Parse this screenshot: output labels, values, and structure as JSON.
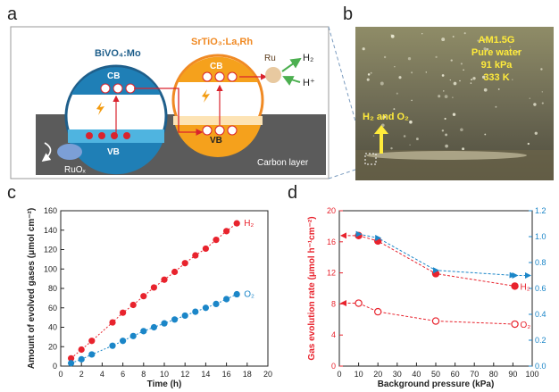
{
  "panel_letters": {
    "a": "a",
    "b": "b",
    "c": "c",
    "d": "d"
  },
  "schematic": {
    "bivo4_label": "BiVO₄:Mo",
    "srtio3_label": "SrTiO₃:La,Rh",
    "cb": "CB",
    "vb": "VB",
    "ru": "Ru",
    "h2": "H₂",
    "hplus": "H⁺",
    "h2o": "H₂O",
    "o2": "O₂",
    "ruox": "RuOₓ",
    "carbon_layer": "Carbon layer",
    "colors": {
      "blue": "#1f7fb6",
      "orange": "#f5a11c",
      "gray": "#5f5f5f",
      "red": "#d9232d"
    }
  },
  "photo": {
    "conditions": [
      "AM1.5G",
      "Pure water",
      "91 kPa",
      "333 K"
    ],
    "gas_label": "H₂ and O₂"
  },
  "chart_data": [
    {
      "type": "scatter",
      "panel": "c",
      "xlabel": "Time (h)",
      "ylabel": "Amount of evolved gases (μmol cm⁻²)",
      "xlim": [
        0,
        20
      ],
      "ylim": [
        0,
        160
      ],
      "xticks": [
        0,
        2,
        4,
        6,
        8,
        10,
        12,
        14,
        16,
        18,
        20
      ],
      "yticks": [
        0,
        20,
        40,
        60,
        80,
        100,
        120,
        140,
        160
      ],
      "series": [
        {
          "name": "H₂",
          "color": "#e8232d",
          "x": [
            1,
            2,
            3,
            5,
            6,
            7,
            8,
            9,
            10,
            11,
            12,
            13,
            14,
            15,
            16,
            17
          ],
          "y": [
            8,
            17,
            26,
            45,
            55,
            63,
            72,
            81,
            89,
            97,
            106,
            114,
            121,
            130,
            139,
            147
          ]
        },
        {
          "name": "O₂",
          "color": "#1b86c8",
          "x": [
            1,
            2,
            3,
            5,
            6,
            7,
            8,
            9,
            10,
            11,
            12,
            13,
            14,
            15,
            16,
            17
          ],
          "y": [
            3,
            7,
            12,
            21,
            26,
            31,
            36,
            40,
            44,
            48,
            52,
            56,
            60,
            64,
            69,
            74
          ]
        }
      ]
    },
    {
      "type": "scatter",
      "panel": "d",
      "xlabel": "Background pressure (kPa)",
      "ylabel": "Gas evolution rate (μmol h⁻¹cm⁻²)",
      "xlim": [
        0,
        100
      ],
      "ylim": [
        0,
        20
      ],
      "y2lim": [
        0,
        1.2
      ],
      "xticks": [
        0,
        10,
        20,
        30,
        40,
        50,
        60,
        70,
        80,
        90,
        100
      ],
      "yticks": [
        0,
        4,
        8,
        12,
        16,
        20
      ],
      "y2ticks": [
        0.0,
        0.2,
        0.4,
        0.6,
        0.8,
        1.0,
        1.2
      ],
      "y2ticklabels": [
        "0.0",
        "0.2",
        "0.4",
        "0.6",
        "0.8",
        "1.0",
        "1.2"
      ],
      "series": [
        {
          "name": "H₂",
          "color": "#e8232d",
          "filled": true,
          "x": [
            10,
            20,
            50,
            91
          ],
          "y": [
            16.8,
            16.1,
            11.9,
            10.3
          ]
        },
        {
          "name": "O₂",
          "color": "#e8232d",
          "filled": false,
          "x": [
            10,
            20,
            50,
            91
          ],
          "y": [
            8.1,
            7.0,
            5.8,
            5.4
          ]
        },
        {
          "name": "",
          "axis": "right",
          "color": "#1b86c8",
          "x": [
            10,
            20,
            50,
            91
          ],
          "y": [
            1.02,
            0.99,
            0.74,
            0.7
          ]
        }
      ]
    }
  ]
}
